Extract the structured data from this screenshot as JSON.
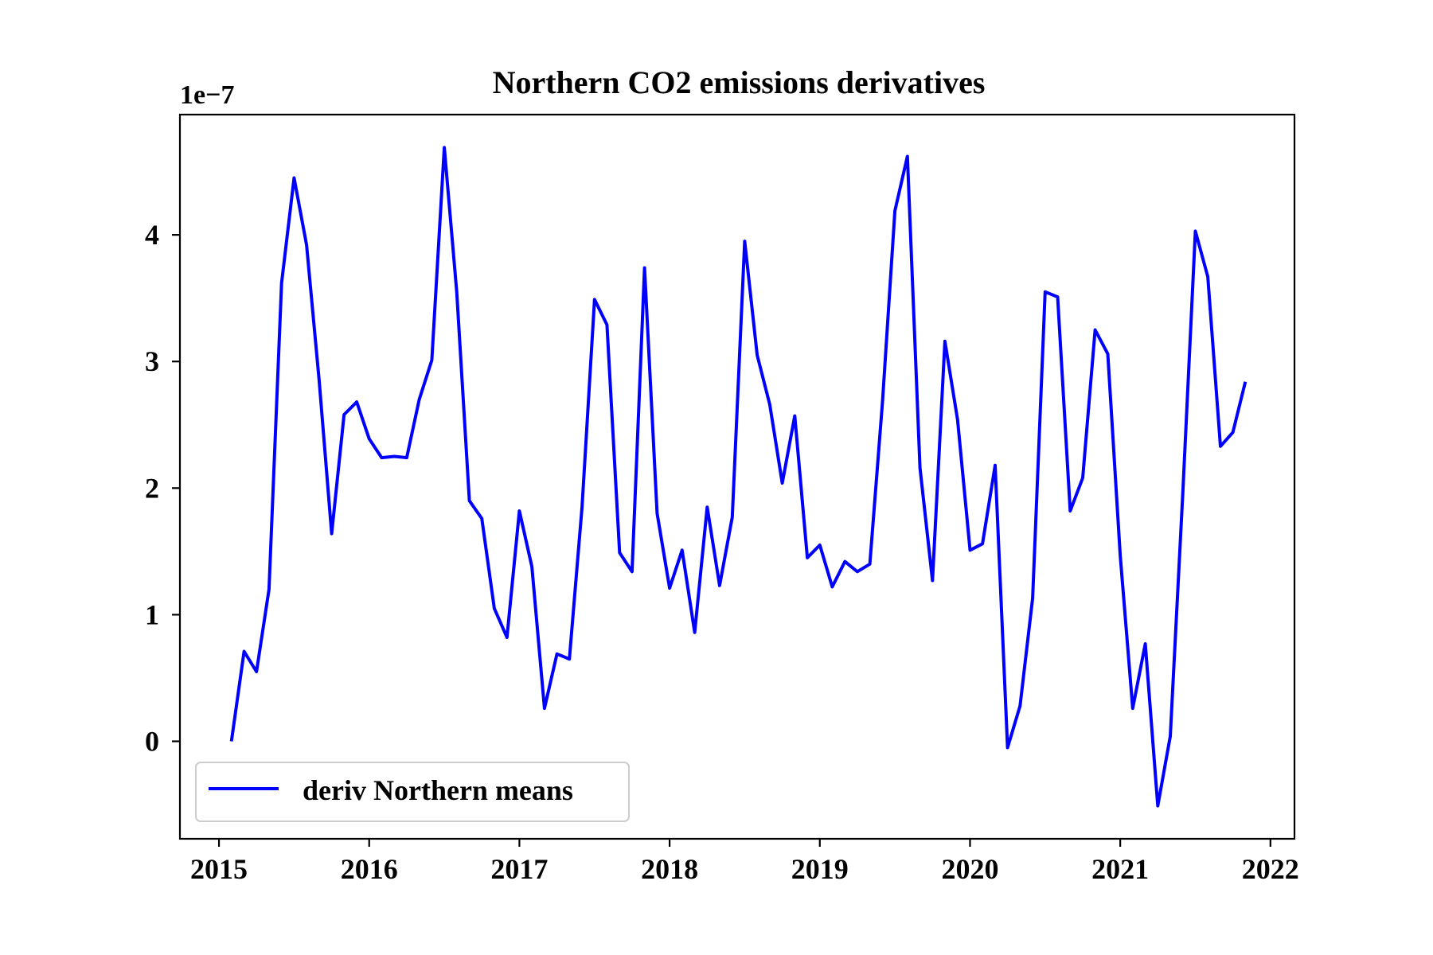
{
  "chart_data": {
    "type": "line",
    "title": "Northern CO2 emissions derivatives",
    "offset_text": "1e−7",
    "xlabel": "",
    "ylabel": "",
    "x_ticks": [
      2015,
      2016,
      2017,
      2018,
      2019,
      2020,
      2021,
      2022
    ],
    "y_ticks": [
      0,
      1,
      2,
      3,
      4
    ],
    "xlim": [
      2014.74,
      2022.16
    ],
    "ylim": [
      -0.77,
      4.95
    ],
    "y_scale_factor": 1e-07,
    "grid": false,
    "legend": {
      "position": "lower left",
      "entries": [
        "deriv Northern means"
      ]
    },
    "series": [
      {
        "name": "deriv Northern means",
        "color": "#0000ff",
        "x": [
          2015.083,
          2015.167,
          2015.25,
          2015.333,
          2015.417,
          2015.5,
          2015.583,
          2015.667,
          2015.75,
          2015.833,
          2015.917,
          2016.0,
          2016.083,
          2016.167,
          2016.25,
          2016.333,
          2016.417,
          2016.5,
          2016.583,
          2016.667,
          2016.75,
          2016.833,
          2016.917,
          2017.0,
          2017.083,
          2017.167,
          2017.25,
          2017.333,
          2017.417,
          2017.5,
          2017.583,
          2017.667,
          2017.75,
          2017.833,
          2017.917,
          2018.0,
          2018.083,
          2018.167,
          2018.25,
          2018.333,
          2018.417,
          2018.5,
          2018.583,
          2018.667,
          2018.75,
          2018.833,
          2018.917,
          2019.0,
          2019.083,
          2019.167,
          2019.25,
          2019.333,
          2019.417,
          2019.5,
          2019.583,
          2019.667,
          2019.75,
          2019.833,
          2019.917,
          2020.0,
          2020.083,
          2020.167,
          2020.25,
          2020.333,
          2020.417,
          2020.5,
          2020.583,
          2020.667,
          2020.75,
          2020.833,
          2020.917,
          2021.0,
          2021.083,
          2021.167,
          2021.25,
          2021.333,
          2021.417,
          2021.5,
          2021.583,
          2021.667,
          2021.75,
          2021.833
        ],
        "values": [
          0.0,
          0.71,
          0.55,
          1.2,
          3.62,
          4.45,
          3.92,
          2.85,
          1.64,
          2.58,
          2.68,
          2.39,
          2.24,
          2.25,
          2.24,
          2.7,
          3.01,
          4.69,
          3.55,
          1.9,
          1.76,
          1.05,
          0.82,
          1.82,
          1.38,
          0.26,
          0.69,
          0.65,
          1.85,
          3.49,
          3.29,
          1.49,
          1.34,
          3.74,
          1.8,
          1.21,
          1.51,
          0.86,
          1.85,
          1.23,
          1.77,
          3.95,
          3.05,
          2.66,
          2.04,
          2.57,
          1.45,
          1.55,
          1.22,
          1.42,
          1.34,
          1.4,
          2.68,
          4.19,
          4.62,
          2.16,
          1.27,
          3.16,
          2.54,
          1.51,
          1.56,
          2.18,
          -0.05,
          0.28,
          1.13,
          3.55,
          3.51,
          1.82,
          2.08,
          3.25,
          3.06,
          1.47,
          0.26,
          0.77,
          -0.51,
          0.04,
          1.97,
          4.03,
          3.67,
          2.33,
          2.44,
          2.84
        ]
      }
    ]
  }
}
